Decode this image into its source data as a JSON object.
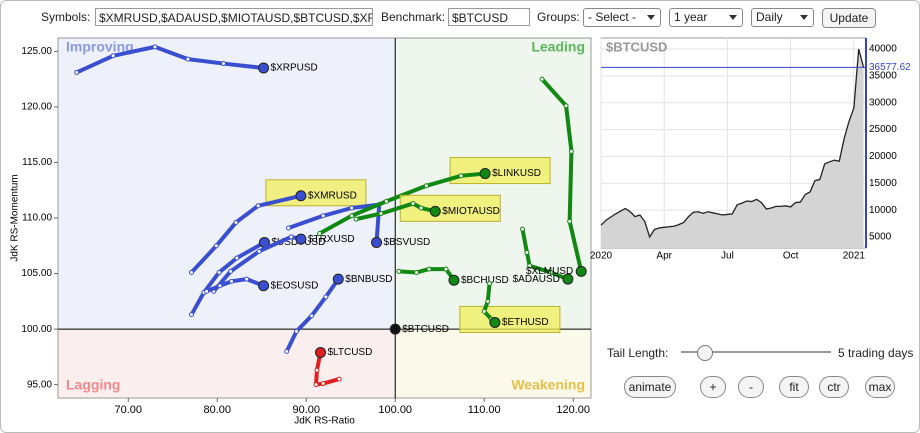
{
  "toolbar": {
    "symbols_label": "Symbols:",
    "symbols_value": "$XMRUSD,$ADAUSD,$MIOTAUSD,$BTCUSD,$XF",
    "benchmark_label": "Benchmark:",
    "benchmark_value": "$BTCUSD",
    "groups_label": "Groups:",
    "groups_value": "- Select -",
    "period": "1 year",
    "frequency": "Daily",
    "update": "Update"
  },
  "chart_data": [
    {
      "type": "rrg",
      "xlabel": "JdK RS-Ratio",
      "ylabel": "JdK RS-Momentum",
      "center": [
        100,
        100
      ],
      "quadrants": [
        {
          "name": "Improving",
          "color": "#8a9ae0",
          "bg": "#eef0fa"
        },
        {
          "name": "Leading",
          "color": "#5cb85c",
          "bg": "#eef6ee"
        },
        {
          "name": "Lagging",
          "color": "#f08a8a",
          "bg": "#fbeeee"
        },
        {
          "name": "Weakening",
          "color": "#e6c04a",
          "bg": "#fbf9ea"
        }
      ],
      "xlim": [
        62.1,
        122
      ],
      "ylim": [
        93.8,
        126.2
      ],
      "xticks": [
        {
          "value": 70,
          "label": "70.00"
        },
        {
          "value": 80,
          "label": "80.00"
        },
        {
          "value": 90,
          "label": "90.00"
        },
        {
          "value": 100,
          "label": "100.00"
        },
        {
          "value": 110,
          "label": "110.00"
        },
        {
          "value": 120,
          "label": "120.00"
        }
      ],
      "yticks": [
        {
          "value": 95,
          "label": "95.00"
        },
        {
          "value": 100,
          "label": "100.00"
        },
        {
          "value": 105,
          "label": "105.00"
        },
        {
          "value": 110,
          "label": "110.00"
        },
        {
          "value": 115,
          "label": "115.00"
        },
        {
          "value": 120,
          "label": "120.00"
        },
        {
          "value": 125,
          "label": "125.00"
        }
      ],
      "series": [
        {
          "name": "$XRPUSD",
          "color": "#3a4fcf",
          "highlight": false,
          "x": [
            64.2,
            68.3,
            73.0,
            76.7,
            80.7,
            85.2
          ],
          "y": [
            123.1,
            124.6,
            125.4,
            124.3,
            123.9,
            123.5
          ]
        },
        {
          "name": "$XMRUSD",
          "color": "#3a4fcf",
          "highlight": true,
          "x": [
            77.1,
            79.9,
            82.1,
            84.6,
            89.4
          ],
          "y": [
            105.1,
            107.5,
            109.6,
            111.1,
            112.0
          ]
        },
        {
          "name": "$USDTUSD",
          "color": "#3a4fcf",
          "highlight": false,
          "x": [
            77.1,
            78.5,
            80.2,
            82.2,
            85.3
          ],
          "y": [
            101.3,
            103.3,
            105.1,
            106.4,
            107.8
          ]
        },
        {
          "name": "$TRXUSD",
          "color": "#3a4fcf",
          "highlight": false,
          "x": [
            79.6,
            81.5,
            84.7,
            88.3,
            89.4
          ],
          "y": [
            103.4,
            105.2,
            107.0,
            108.3,
            108.1
          ]
        },
        {
          "name": "$BSVUSD",
          "color": "#3a4fcf",
          "highlight": false,
          "x": [
            88.0,
            91.9,
            95.1,
            98.2,
            97.9
          ],
          "y": [
            109.1,
            110.2,
            110.9,
            111.2,
            107.8
          ]
        },
        {
          "name": "$EOSUSD",
          "color": "#3a4fcf",
          "highlight": false,
          "x": [
            78.8,
            80.3,
            81.6,
            83.3,
            85.2
          ],
          "y": [
            103.4,
            103.9,
            104.3,
            104.5,
            103.9
          ]
        },
        {
          "name": "$BNBUSD",
          "color": "#3a4fcf",
          "highlight": false,
          "x": [
            87.8,
            88.9,
            90.6,
            92.2,
            93.6
          ],
          "y": [
            98.0,
            99.8,
            101.2,
            102.9,
            104.5
          ]
        },
        {
          "name": "$LTCUSD",
          "color": "#e02020",
          "highlight": false,
          "x": [
            93.7,
            91.9,
            91.1,
            91.2,
            91.6
          ],
          "y": [
            95.5,
            95.1,
            95.0,
            96.3,
            97.9
          ]
        },
        {
          "name": "$BTCUSD",
          "color": "#111111",
          "highlight": false,
          "x": [
            100
          ],
          "y": [
            100
          ]
        },
        {
          "name": "$LINKUSD",
          "color": "#118811",
          "highlight": true,
          "x": [
            91.5,
            95.1,
            99.0,
            103.5,
            107.4,
            110.1
          ],
          "y": [
            108.6,
            110.2,
            111.5,
            112.9,
            113.8,
            114.0
          ]
        },
        {
          "name": "$MIOTAUSD",
          "color": "#118811",
          "highlight": true,
          "x": [
            95.6,
            98.4,
            102.0,
            102.9,
            104.5
          ],
          "y": [
            109.9,
            110.4,
            111.3,
            110.9,
            110.6
          ]
        },
        {
          "name": "$BCHUSD",
          "color": "#118811",
          "highlight": false,
          "x": [
            100.4,
            102.4,
            103.8,
            105.7,
            106.6
          ],
          "y": [
            105.2,
            105.1,
            105.4,
            105.4,
            104.4
          ]
        },
        {
          "name": "$ETHUSD",
          "color": "#118811",
          "highlight": true,
          "x": [
            110.6,
            110.4,
            110.0,
            110.8,
            111.2
          ],
          "y": [
            104.1,
            102.5,
            101.6,
            100.9,
            100.6
          ]
        },
        {
          "name": "$ADAUSD",
          "color": "#118811",
          "highlight": false,
          "x": [
            114.3,
            114.8,
            115.1,
            117.5,
            119.4
          ],
          "y": [
            109.0,
            106.9,
            105.7,
            105.1,
            104.5
          ]
        },
        {
          "name": "$XLMUSD",
          "color": "#118811",
          "highlight": false,
          "x": [
            116.5,
            119.2,
            119.8,
            119.6,
            120.9
          ],
          "y": [
            122.5,
            120.1,
            116.0,
            109.7,
            105.2
          ]
        }
      ]
    },
    {
      "type": "area",
      "title": "$BTCUSD",
      "color": "#222222",
      "fill": "#d4d4d4",
      "marker_color": "#3344cc",
      "xlim": [
        0,
        54.5
      ],
      "ylim": [
        2950,
        42050
      ],
      "xticks": [
        {
          "value": 0,
          "label": "2020"
        },
        {
          "value": 13,
          "label": "Apr"
        },
        {
          "value": 26,
          "label": "Jul"
        },
        {
          "value": 39,
          "label": "Oct"
        },
        {
          "value": 52,
          "label": "2021"
        }
      ],
      "yticks": [
        5000,
        10000,
        15000,
        20000,
        25000,
        30000,
        35000,
        40000
      ],
      "values": [
        7200,
        8100,
        8700,
        9300,
        9800,
        10300,
        9700,
        8800,
        9100,
        7900,
        5000,
        6400,
        6700,
        6800,
        6900,
        7000,
        7300,
        7700,
        8800,
        9600,
        9700,
        9400,
        9700,
        9500,
        9300,
        9100,
        9200,
        9300,
        11000,
        11300,
        11700,
        11600,
        12000,
        11400,
        10200,
        10400,
        10700,
        10700,
        10800,
        10600,
        11400,
        11500,
        12900,
        13400,
        15500,
        15700,
        18600,
        19000,
        19300,
        19100,
        23300,
        26500,
        29000,
        40000,
        36577.62
      ]
    }
  ],
  "controls": {
    "tail_label": "Tail Length:",
    "tail_value": "5 trading days",
    "buttons": [
      "animate",
      "+",
      "-",
      "fit",
      "ctr",
      "max"
    ]
  }
}
